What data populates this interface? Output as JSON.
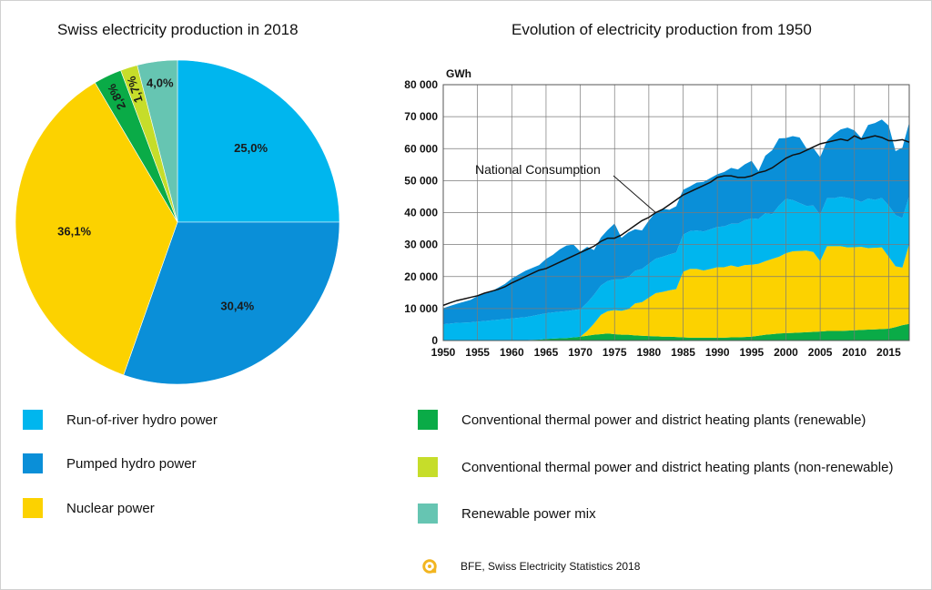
{
  "chart_data": [
    {
      "type": "pie",
      "title": "Swiss electricity production in 2018",
      "slices": [
        {
          "name": "Run-of-river hydro power",
          "value": 25.0,
          "label": "25,0%",
          "color": "#00b6ee"
        },
        {
          "name": "Pumped hydro power",
          "value": 30.4,
          "label": "30,4%",
          "color": "#0a8fd8"
        },
        {
          "name": "Nuclear power",
          "value": 36.1,
          "label": "36,1%",
          "color": "#fcd200"
        },
        {
          "name": "Conventional thermal power and district heating plants (renewable)",
          "value": 2.8,
          "label": "2,8%",
          "color": "#0aab47"
        },
        {
          "name": "Conventional thermal power and district heating plants (non-renewable)",
          "value": 1.7,
          "label": "1,7%",
          "color": "#c6dd2a"
        },
        {
          "name": "Renewable power mix",
          "value": 4.0,
          "label": "4,0%",
          "color": "#66c5b2"
        }
      ]
    },
    {
      "type": "area",
      "title": "Evolution of electricity production from 1950",
      "unit": "GWh",
      "ylim": [
        0,
        80000
      ],
      "yticks": [
        0,
        10000,
        20000,
        30000,
        40000,
        50000,
        60000,
        70000,
        80000
      ],
      "ytick_labels": [
        "0",
        "10 000",
        "20 000",
        "30 000",
        "40 000",
        "50 000",
        "60 000",
        "70 000",
        "80 000"
      ],
      "xlim": [
        1950,
        2018
      ],
      "xticks": [
        1950,
        1955,
        1960,
        1965,
        1970,
        1975,
        1980,
        1985,
        1990,
        1995,
        2000,
        2005,
        2010,
        2015
      ],
      "grid": true,
      "annotation": "National Consumption",
      "stack_order": [
        "Conventional thermal power and district heating plants (renewable)",
        "Nuclear power",
        "Run-of-river hydro power",
        "Pumped hydro power"
      ],
      "x": [
        1950,
        1951,
        1952,
        1953,
        1954,
        1955,
        1956,
        1957,
        1958,
        1959,
        1960,
        1961,
        1962,
        1963,
        1964,
        1965,
        1966,
        1967,
        1968,
        1969,
        1970,
        1971,
        1972,
        1973,
        1974,
        1975,
        1976,
        1977,
        1978,
        1979,
        1980,
        1981,
        1982,
        1983,
        1984,
        1985,
        1986,
        1987,
        1988,
        1989,
        1990,
        1991,
        1992,
        1993,
        1994,
        1995,
        1996,
        1997,
        1998,
        1999,
        2000,
        2001,
        2002,
        2003,
        2004,
        2005,
        2006,
        2007,
        2008,
        2009,
        2010,
        2011,
        2012,
        2013,
        2014,
        2015,
        2016,
        2017,
        2018
      ],
      "series": [
        {
          "name": "Conventional thermal power and district heating plants (renewable)",
          "color": "#0aab47",
          "values": [
            100,
            100,
            100,
            100,
            100,
            100,
            100,
            100,
            100,
            100,
            100,
            100,
            100,
            200,
            300,
            500,
            600,
            700,
            800,
            1000,
            1200,
            1500,
            1800,
            2000,
            2200,
            2000,
            1800,
            1800,
            1600,
            1500,
            1400,
            1300,
            1200,
            1200,
            1100,
            1000,
            900,
            900,
            900,
            900,
            900,
            900,
            1000,
            1000,
            1100,
            1200,
            1500,
            1800,
            2000,
            2200,
            2300,
            2400,
            2500,
            2600,
            2700,
            2800,
            3000,
            3000,
            3000,
            3100,
            3200,
            3300,
            3400,
            3500,
            3600,
            3700,
            4200,
            4800,
            5200
          ]
        },
        {
          "name": "Nuclear power",
          "color": "#fcd200",
          "values": [
            0,
            0,
            0,
            0,
            0,
            0,
            0,
            0,
            0,
            0,
            0,
            0,
            0,
            0,
            0,
            0,
            0,
            0,
            0,
            0,
            0,
            1500,
            3500,
            6000,
            7000,
            7500,
            7500,
            8000,
            10000,
            10500,
            12000,
            13500,
            14000,
            14500,
            15000,
            20500,
            21500,
            21500,
            21000,
            21500,
            22000,
            22000,
            22500,
            22000,
            22500,
            22500,
            22500,
            23000,
            23500,
            24000,
            25000,
            25500,
            25500,
            25500,
            25000,
            22000,
            26500,
            26500,
            26500,
            26000,
            26000,
            26000,
            25500,
            25500,
            25500,
            22500,
            19000,
            18000,
            25000
          ]
        },
        {
          "name": "Run-of-river hydro power",
          "color": "#00b6ee",
          "values": [
            5000,
            5200,
            5400,
            5500,
            5600,
            5800,
            6000,
            6200,
            6400,
            6600,
            6800,
            7000,
            7200,
            7500,
            7800,
            8000,
            8200,
            8300,
            8400,
            8500,
            8600,
            8800,
            9000,
            9200,
            9400,
            9600,
            9800,
            10000,
            10200,
            10400,
            10600,
            10800,
            11000,
            11200,
            11400,
            11600,
            11800,
            12000,
            12200,
            12400,
            12600,
            12800,
            13000,
            13500,
            14000,
            14500,
            14000,
            15000,
            14000,
            16000,
            17000,
            16000,
            15000,
            14000,
            14500,
            14500,
            15000,
            15000,
            15500,
            15500,
            15000,
            14000,
            15500,
            15000,
            15500,
            16000,
            16000,
            15500,
            15000
          ]
        },
        {
          "name": "Pumped hydro power",
          "color": "#0a8fd8",
          "values": [
            5000,
            5500,
            6000,
            6500,
            7000,
            8000,
            8500,
            9000,
            10000,
            11000,
            12500,
            13500,
            14500,
            15000,
            15500,
            17000,
            18000,
            19500,
            20500,
            20500,
            18000,
            17500,
            14000,
            15000,
            16000,
            17500,
            13000,
            14000,
            13000,
            12000,
            13500,
            14500,
            15000,
            14000,
            14500,
            14000,
            14000,
            15000,
            15500,
            16000,
            16500,
            17000,
            17500,
            17000,
            17500,
            18000,
            15000,
            18000,
            20000,
            21000,
            19000,
            20000,
            20500,
            18000,
            18000,
            18000,
            18000,
            20000,
            21000,
            22000,
            21500,
            20000,
            23000,
            24000,
            24500,
            25000,
            20000,
            22000,
            23000
          ]
        }
      ],
      "consumption": {
        "name": "National Consumption",
        "values": [
          11000,
          11800,
          12500,
          13000,
          13500,
          14000,
          14800,
          15400,
          16000,
          16800,
          18000,
          19000,
          20000,
          21000,
          22000,
          22500,
          23500,
          24500,
          25500,
          26500,
          27500,
          28500,
          29500,
          31000,
          32000,
          32000,
          33000,
          34500,
          36000,
          37500,
          38500,
          40000,
          41000,
          42500,
          44000,
          45500,
          46500,
          47500,
          48500,
          49500,
          51000,
          51500,
          51500,
          51000,
          51000,
          51500,
          52500,
          53000,
          54000,
          55500,
          57000,
          58000,
          58500,
          59500,
          60500,
          61500,
          62000,
          62500,
          63000,
          62500,
          64000,
          63000,
          63500,
          64000,
          63500,
          62500,
          62500,
          62800,
          62000
        ],
        "color": "#111111"
      }
    }
  ],
  "legend": [
    {
      "label": "Run-of-river hydro power",
      "color": "#00b6ee"
    },
    {
      "label": "Pumped hydro power",
      "color": "#0a8fd8"
    },
    {
      "label": "Nuclear power",
      "color": "#fcd200"
    },
    {
      "label": "Conventional thermal power and district heating plants (renewable)",
      "color": "#0aab47"
    },
    {
      "label": "Conventional thermal power and district heating plants (non-renewable)",
      "color": "#c6dd2a"
    },
    {
      "label": "Renewable power mix",
      "color": "#66c5b2"
    }
  ],
  "source": {
    "text": "BFE, Swiss Electricity Statistics 2018",
    "icon": "bfe-logo-icon",
    "icon_color": "#f2b51f"
  }
}
